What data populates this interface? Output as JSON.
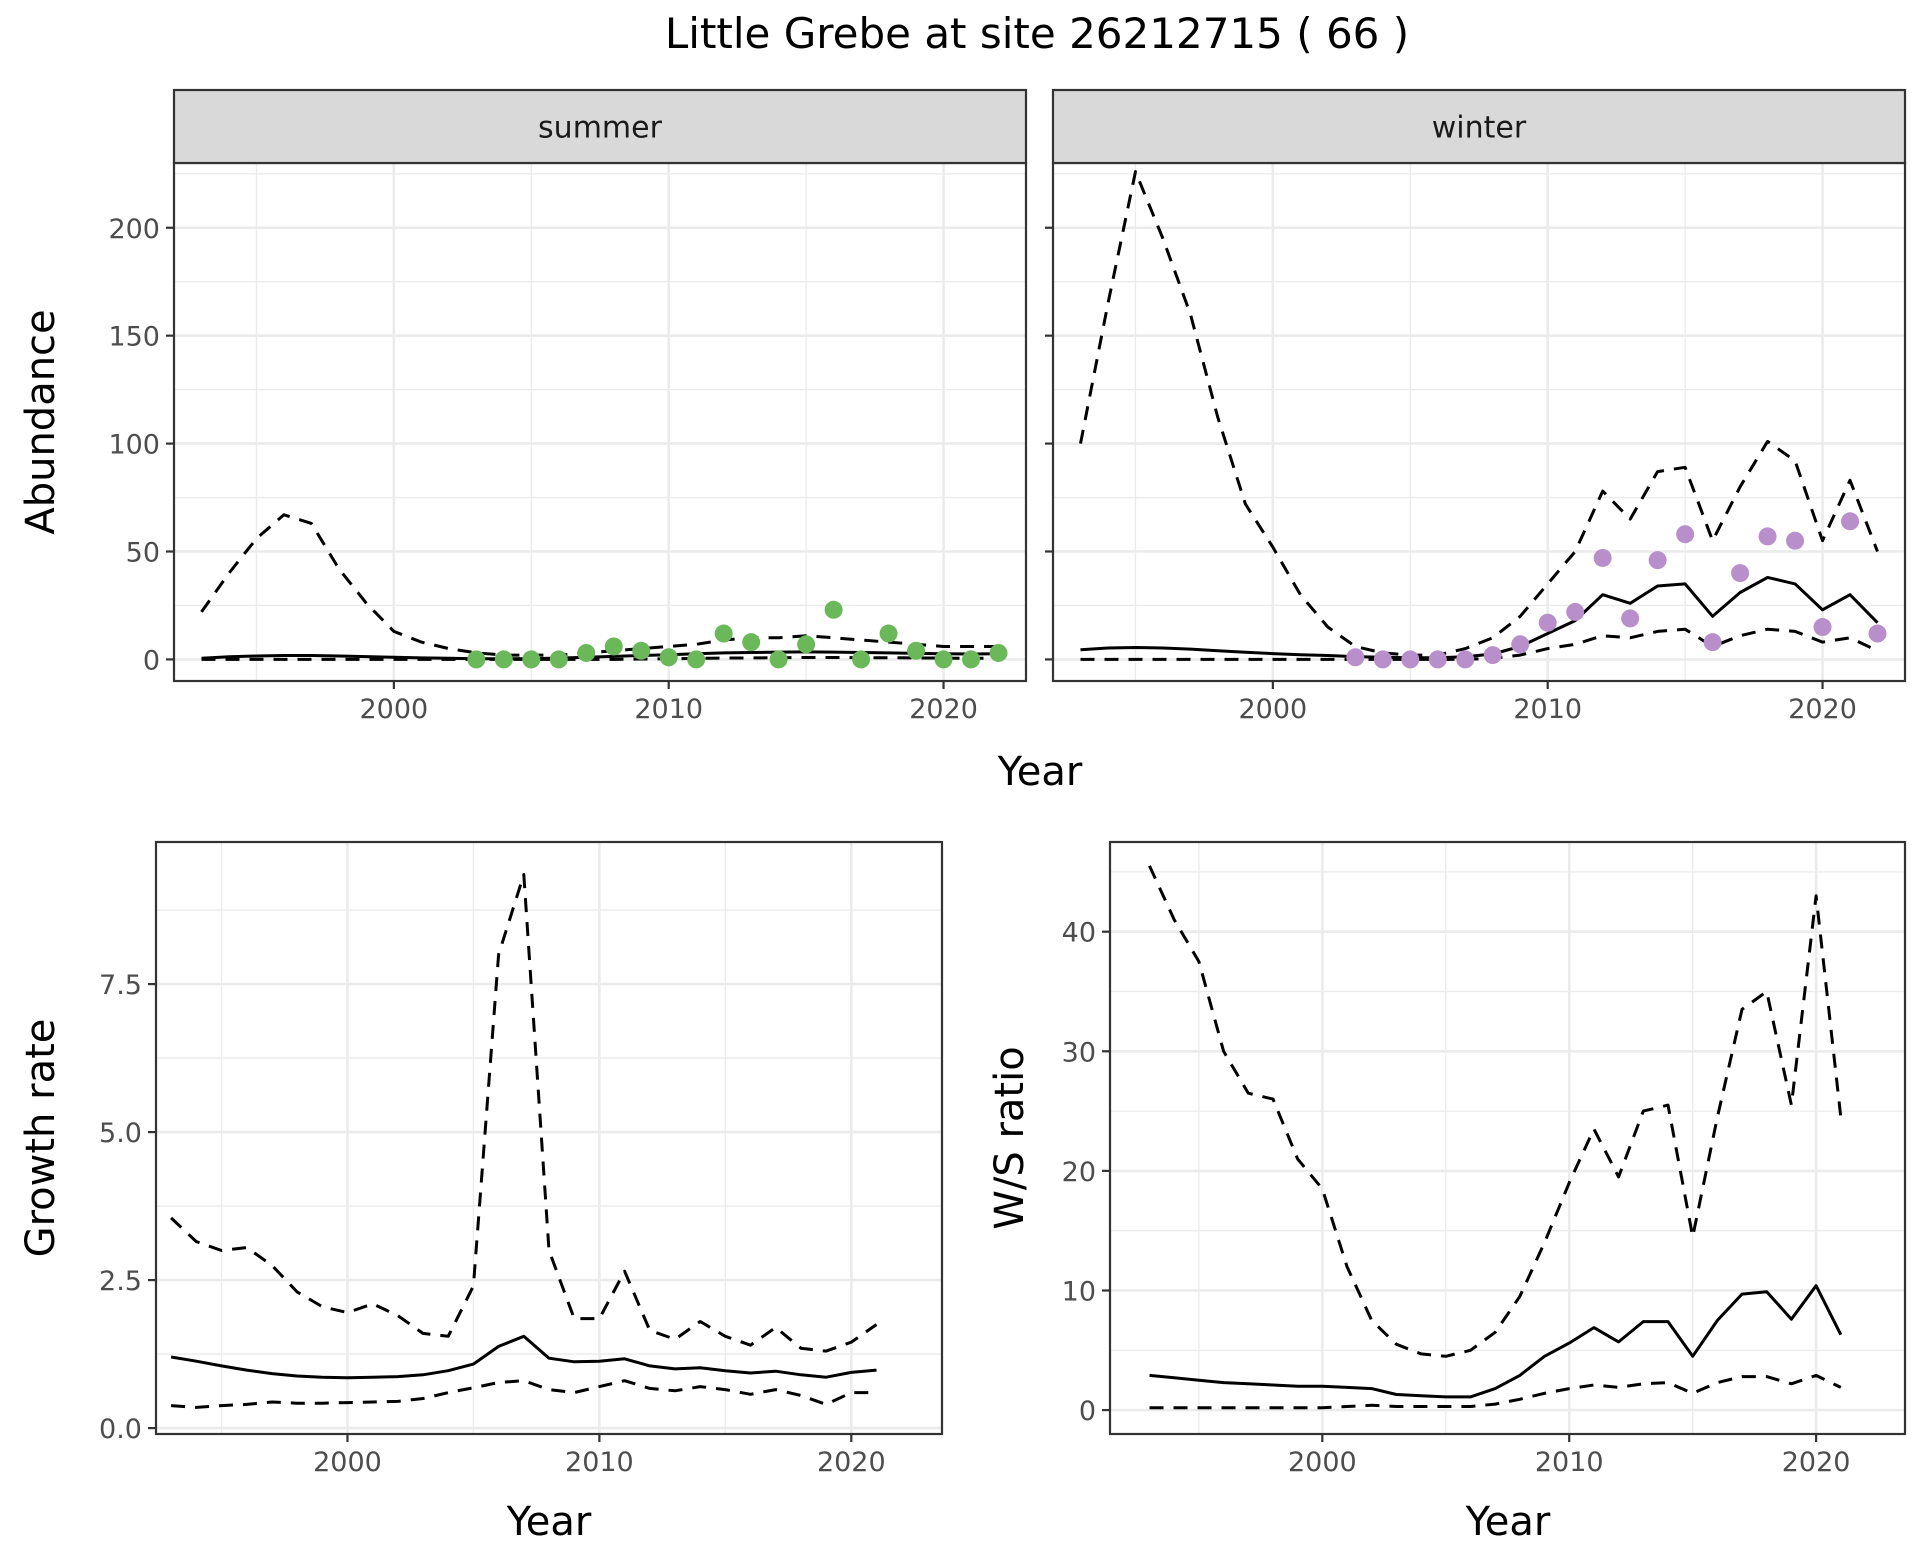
{
  "title": "Little Grebe at site 26212715 ( 66 )",
  "colors": {
    "summer_points": "#6ab85a",
    "winter_points": "#b88fca",
    "lines": "#000000",
    "strip_fill": "#d9d9d9",
    "grid": "#ebebeb"
  },
  "chart_data": [
    {
      "id": "abundance",
      "type": "line",
      "ylabel": "Abundance",
      "xlabel": "Year",
      "xlim": [
        1992,
        2023
      ],
      "ylim": [
        -10,
        230
      ],
      "x_ticks": [
        2000,
        2010,
        2020
      ],
      "y_ticks": [
        0,
        50,
        100,
        150,
        200
      ],
      "grid": true,
      "panels": [
        {
          "strip": "summer",
          "estimate": {
            "x": [
              1993,
              1994,
              1995,
              1996,
              1997,
              1998,
              1999,
              2000,
              2001,
              2002,
              2003,
              2004,
              2005,
              2006,
              2007,
              2008,
              2009,
              2010,
              2011,
              2012,
              2013,
              2014,
              2015,
              2016,
              2017,
              2018,
              2019,
              2020,
              2021,
              2022
            ],
            "y": [
              0.5,
              1.2,
              1.6,
              1.8,
              1.8,
              1.6,
              1.3,
              1.0,
              0.7,
              0.5,
              0.3,
              0.3,
              0.4,
              0.6,
              1.0,
              1.4,
              1.8,
              2.2,
              2.6,
              3.0,
              3.2,
              3.4,
              3.5,
              3.4,
              3.2,
              3.0,
              2.8,
              2.6,
              2.5,
              2.6
            ]
          },
          "lower": {
            "x": [
              1993,
              1994,
              1995,
              1996,
              1997,
              1998,
              1999,
              2000,
              2001,
              2002,
              2003,
              2004,
              2005,
              2006,
              2007,
              2008,
              2009,
              2010,
              2011,
              2012,
              2013,
              2014,
              2015,
              2016,
              2017,
              2018,
              2019,
              2020,
              2021,
              2022
            ],
            "y": [
              0,
              0,
              0,
              0,
              0,
              0,
              0,
              0,
              0,
              0,
              0,
              0,
              0,
              0,
              0,
              0,
              0.2,
              0.3,
              0.5,
              0.6,
              0.7,
              0.8,
              0.9,
              0.9,
              0.8,
              0.8,
              0.7,
              0.6,
              0.5,
              0.6
            ]
          },
          "upper": {
            "x": [
              1993,
              1994,
              1995,
              1996,
              1997,
              1998,
              1999,
              2000,
              2001,
              2002,
              2003,
              2004,
              2005,
              2006,
              2007,
              2008,
              2009,
              2010,
              2011,
              2012,
              2013,
              2014,
              2015,
              2016,
              2017,
              2018,
              2019,
              2020,
              2021,
              2022
            ],
            "y": [
              22,
              40,
              56,
              67,
              63,
              42,
              26,
              13,
              8,
              5,
              3,
              2,
              2,
              2,
              3,
              4,
              5,
              6,
              7,
              9,
              10,
              10,
              11,
              10,
              9,
              8,
              7,
              6,
              6,
              6
            ]
          },
          "observed": {
            "x": [
              2003,
              2004,
              2005,
              2006,
              2007,
              2008,
              2009,
              2010,
              2011,
              2012,
              2013,
              2014,
              2015,
              2016,
              2017,
              2018,
              2019,
              2020,
              2021,
              2022
            ],
            "y": [
              0,
              0,
              0,
              0,
              3,
              6,
              4,
              1,
              0,
              12,
              8,
              0,
              7,
              23,
              0,
              12,
              4,
              0,
              0,
              3
            ]
          }
        },
        {
          "strip": "winter",
          "estimate": {
            "x": [
              1993,
              1994,
              1995,
              1996,
              1997,
              1998,
              1999,
              2000,
              2001,
              2002,
              2003,
              2004,
              2005,
              2006,
              2007,
              2008,
              2009,
              2010,
              2011,
              2012,
              2013,
              2014,
              2015,
              2016,
              2017,
              2018,
              2019,
              2020,
              2021,
              2022
            ],
            "y": [
              4.5,
              5.3,
              5.5,
              5.3,
              4.8,
              4.0,
              3.3,
              2.7,
              2.2,
              1.8,
              1.3,
              1.0,
              0.8,
              0.8,
              1.2,
              2.5,
              6,
              12,
              18,
              30,
              26,
              34,
              35,
              20,
              31,
              38,
              35,
              23,
              30,
              17
            ]
          },
          "lower": {
            "x": [
              1993,
              1994,
              1995,
              1996,
              1997,
              1998,
              1999,
              2000,
              2001,
              2002,
              2003,
              2004,
              2005,
              2006,
              2007,
              2008,
              2009,
              2010,
              2011,
              2012,
              2013,
              2014,
              2015,
              2016,
              2017,
              2018,
              2019,
              2020,
              2021,
              2022
            ],
            "y": [
              0,
              0,
              0,
              0,
              0,
              0,
              0,
              0,
              0,
              0,
              0,
              0,
              0,
              0,
              0,
              0.5,
              2,
              5,
              7,
              11,
              10,
              13,
              14,
              6,
              11,
              14,
              13,
              8,
              10,
              4
            ]
          },
          "upper": {
            "x": [
              1993,
              1994,
              1995,
              1996,
              1997,
              1998,
              1999,
              2000,
              2001,
              2002,
              2003,
              2004,
              2005,
              2006,
              2007,
              2008,
              2009,
              2010,
              2011,
              2012,
              2013,
              2014,
              2015,
              2016,
              2017,
              2018,
              2019,
              2020,
              2021,
              2022
            ],
            "y": [
              100,
              165,
              226,
              195,
              160,
              112,
              72,
              52,
              30,
              15,
              6,
              3,
              2,
              2,
              5,
              10,
              20,
              35,
              50,
              78,
              65,
              87,
              89,
              55,
              80,
              101,
              92,
              55,
              83,
              50
            ]
          },
          "observed": {
            "x": [
              2003,
              2004,
              2005,
              2006,
              2007,
              2008,
              2009,
              2010,
              2011,
              2012,
              2013,
              2014,
              2015,
              2016,
              2017,
              2018,
              2019,
              2020,
              2021,
              2022
            ],
            "y": [
              1,
              0,
              0,
              0,
              0,
              2,
              7,
              17,
              22,
              47,
              19,
              46,
              58,
              8,
              40,
              57,
              55,
              15,
              64,
              12
            ]
          }
        }
      ]
    },
    {
      "id": "growth",
      "type": "line",
      "ylabel": "Growth rate",
      "xlabel": "Year",
      "xlim": [
        1992.4,
        2023.6
      ],
      "ylim": [
        -0.1,
        9.9
      ],
      "x_ticks": [
        2000,
        2010,
        2020
      ],
      "y_ticks": [
        0.0,
        2.5,
        5.0,
        7.5
      ],
      "y_tick_labels": [
        "0.0",
        "2.5",
        "5.0",
        "7.5"
      ],
      "grid": true,
      "estimate": {
        "x": [
          1993,
          1994,
          1995,
          1996,
          1997,
          1998,
          1999,
          2000,
          2001,
          2002,
          2003,
          2004,
          2005,
          2006,
          2007,
          2008,
          2009,
          2010,
          2011,
          2012,
          2013,
          2014,
          2015,
          2016,
          2017,
          2018,
          2019,
          2020,
          2021
        ],
        "y": [
          1.2,
          1.13,
          1.05,
          0.98,
          0.92,
          0.88,
          0.86,
          0.85,
          0.86,
          0.87,
          0.9,
          0.97,
          1.08,
          1.38,
          1.55,
          1.18,
          1.12,
          1.13,
          1.17,
          1.05,
          1.0,
          1.02,
          0.97,
          0.93,
          0.96,
          0.9,
          0.86,
          0.94,
          0.98
        ]
      },
      "lower": {
        "x": [
          1993,
          1994,
          1995,
          1996,
          1997,
          1998,
          1999,
          2000,
          2001,
          2002,
          2003,
          2004,
          2005,
          2006,
          2007,
          2008,
          2009,
          2010,
          2011,
          2012,
          2013,
          2014,
          2015,
          2016,
          2017,
          2018,
          2019,
          2020,
          2021
        ],
        "y": [
          0.38,
          0.35,
          0.38,
          0.4,
          0.44,
          0.42,
          0.42,
          0.43,
          0.44,
          0.45,
          0.5,
          0.6,
          0.68,
          0.77,
          0.8,
          0.65,
          0.6,
          0.7,
          0.8,
          0.67,
          0.63,
          0.7,
          0.65,
          0.57,
          0.65,
          0.55,
          0.4,
          0.6,
          0.6
        ]
      },
      "upper": {
        "x": [
          1993,
          1994,
          1995,
          1996,
          1997,
          1998,
          1999,
          2000,
          2001,
          2002,
          2003,
          2004,
          2005,
          2006,
          2007,
          2008,
          2009,
          2010,
          2011,
          2012,
          2013,
          2014,
          2015,
          2016,
          2017,
          2018,
          2019,
          2020,
          2021
        ],
        "y": [
          3.55,
          3.15,
          3.0,
          3.05,
          2.75,
          2.3,
          2.05,
          1.95,
          2.1,
          1.9,
          1.6,
          1.55,
          2.4,
          8.0,
          9.35,
          3.0,
          1.85,
          1.85,
          2.65,
          1.65,
          1.5,
          1.8,
          1.55,
          1.4,
          1.7,
          1.35,
          1.3,
          1.45,
          1.75
        ]
      }
    },
    {
      "id": "ratio",
      "type": "line",
      "ylabel": "W/S ratio",
      "xlabel": "Year",
      "xlim": [
        1991.4,
        2023.6
      ],
      "ylim": [
        -2,
        47.5
      ],
      "x_ticks": [
        2000,
        2010,
        2020
      ],
      "y_ticks": [
        0,
        10,
        20,
        30,
        40
      ],
      "grid": true,
      "estimate": {
        "x": [
          1993,
          1994,
          1995,
          1996,
          1997,
          1998,
          1999,
          2000,
          2001,
          2002,
          2003,
          2004,
          2005,
          2006,
          2007,
          2008,
          2009,
          2010,
          2011,
          2012,
          2013,
          2014,
          2015,
          2016,
          2017,
          2018,
          2019,
          2020,
          2021
        ],
        "y": [
          2.9,
          2.7,
          2.5,
          2.3,
          2.2,
          2.1,
          2.0,
          2.0,
          1.9,
          1.8,
          1.3,
          1.2,
          1.1,
          1.1,
          1.8,
          2.9,
          4.5,
          5.6,
          6.9,
          5.7,
          7.4,
          7.4,
          4.5,
          7.5,
          9.7,
          9.9,
          7.6,
          10.4,
          6.3
        ]
      },
      "lower": {
        "x": [
          1993,
          1994,
          1995,
          1996,
          1997,
          1998,
          1999,
          2000,
          2001,
          2002,
          2003,
          2004,
          2005,
          2006,
          2007,
          2008,
          2009,
          2010,
          2011,
          2012,
          2013,
          2014,
          2015,
          2016,
          2017,
          2018,
          2019,
          2020,
          2021
        ],
        "y": [
          0.2,
          0.2,
          0.2,
          0.2,
          0.2,
          0.2,
          0.2,
          0.2,
          0.3,
          0.4,
          0.3,
          0.3,
          0.3,
          0.3,
          0.5,
          0.9,
          1.4,
          1.8,
          2.1,
          1.9,
          2.2,
          2.3,
          1.4,
          2.3,
          2.8,
          2.8,
          2.2,
          2.9,
          1.9
        ]
      },
      "upper": {
        "x": [
          1993,
          1994,
          1995,
          1996,
          1997,
          1998,
          1999,
          2000,
          2001,
          2002,
          2003,
          2004,
          2005,
          2006,
          2007,
          2008,
          2009,
          2010,
          2011,
          2012,
          2013,
          2014,
          2015,
          2016,
          2017,
          2018,
          2019,
          2020,
          2021
        ],
        "y": [
          45.5,
          41,
          37.5,
          30,
          26.5,
          26,
          21,
          18.5,
          12,
          7.5,
          5.5,
          4.7,
          4.5,
          5,
          6.5,
          9.5,
          14,
          19,
          23.5,
          19.5,
          25,
          25.5,
          14.5,
          24.5,
          33.5,
          35,
          25.5,
          43,
          24.5
        ]
      }
    }
  ]
}
